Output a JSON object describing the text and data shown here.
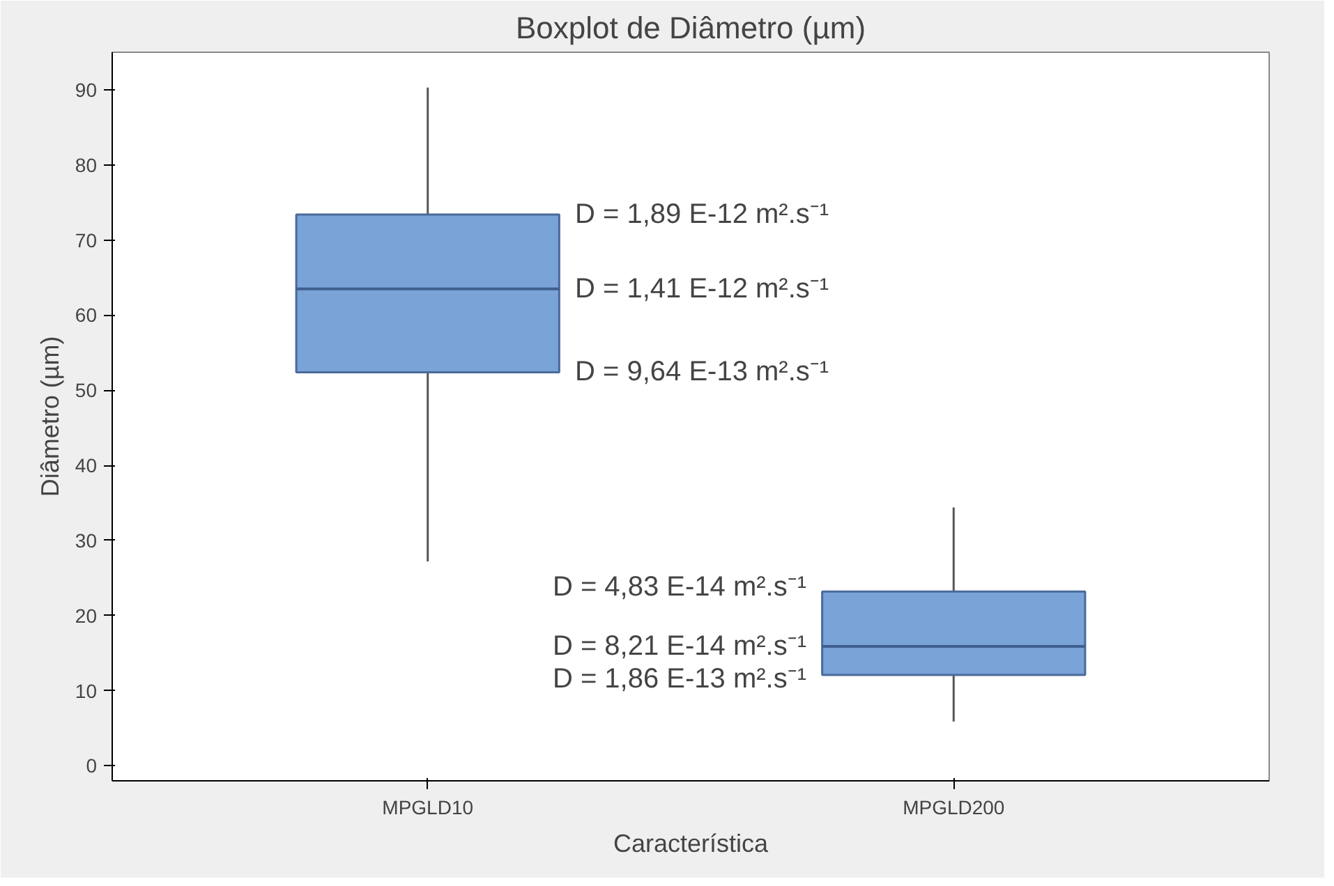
{
  "chart_data": {
    "type": "box",
    "title": "Boxplot de Diâmetro (µm)",
    "xlabel": "Característica",
    "ylabel": "Diâmetro (µm)",
    "categories": [
      "MPGLD10",
      "MPGLD200"
    ],
    "series": [
      {
        "color": "#7aa3d8",
        "boxes": [
          {
            "low": 27.2,
            "q1": 52.4,
            "median": 63.5,
            "q3": 73.4,
            "high": 90.3
          },
          {
            "low": 5.9,
            "q1": 12.1,
            "median": 15.9,
            "q3": 23.2,
            "high": 34.4
          }
        ]
      }
    ],
    "ylim": [
      -2,
      95
    ],
    "yticks": [
      0,
      10,
      20,
      30,
      40,
      50,
      60,
      70,
      80,
      90
    ],
    "grid": false,
    "annotations": [
      "D = 1,89 E-12 m².s⁻¹",
      "D = 1,41 E-12 m².s⁻¹",
      "D = 9,64 E-13 m².s⁻¹",
      "D = 4,83 E-14 m².s⁻¹",
      "D = 8,21 E-14 m².s⁻¹",
      "D = 1,86 E-13 m².s⁻¹"
    ]
  }
}
